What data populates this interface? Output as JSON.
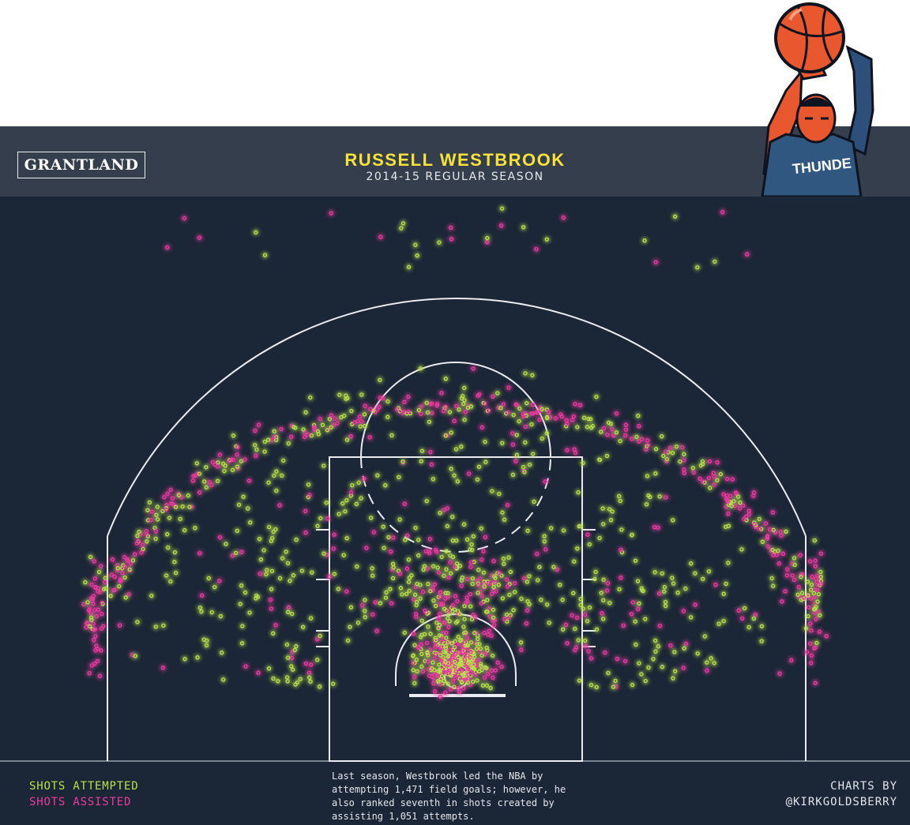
{
  "logo": "GRANTLAND",
  "header": {
    "title": "RUSSELL WESTBROOK",
    "subtitle": "2014-15 REGULAR SEASON"
  },
  "footer": {
    "legend_attempted": "SHOTS ATTEMPTED",
    "legend_assisted": "SHOTS ASSISTED",
    "note": "Last season, Westbrook led the NBA by attempting 1,471 field goals; however, he also ranked seventh in shots created by assisting 1,051 attempts.",
    "credit_line1": "CHARTS BY",
    "credit_line2": "@KIRKGOLDSBERRY"
  },
  "illustration": {
    "jersey_text": "THUNDE"
  },
  "colors": {
    "attempted": "#b9e04a",
    "assisted": "#ee3aa0",
    "court_bg": "#1b2737",
    "header_bg": "#343e4c",
    "title": "#f7e23a"
  },
  "chart_data": {
    "type": "scatter",
    "title": "RUSSELL WESTBROOK",
    "subtitle": "2014-15 REGULAR SEASON",
    "series": [
      {
        "name": "SHOTS ATTEMPTED",
        "total": 1471
      },
      {
        "name": "SHOTS ASSISTED",
        "total": 1051
      }
    ],
    "grid": false,
    "legend_placement": "bottom-left"
  }
}
